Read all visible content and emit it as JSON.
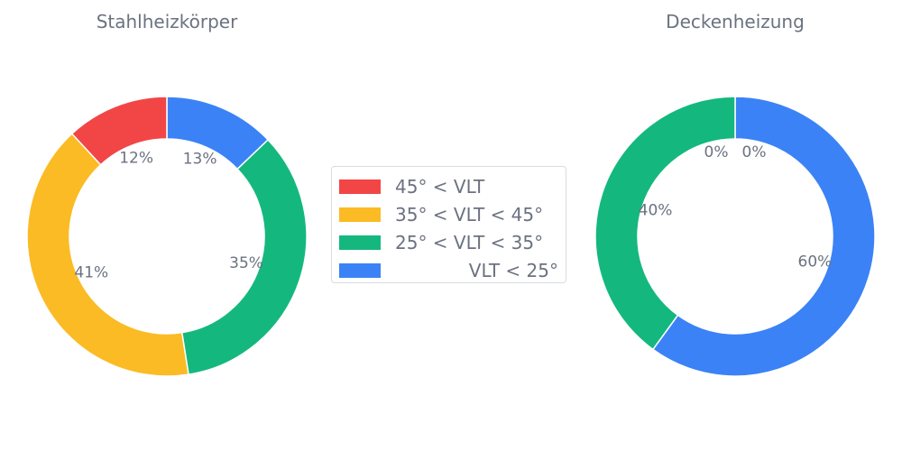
{
  "chart_data": [
    {
      "type": "pie",
      "title": "Stahlheizkörper",
      "categories": [
        "VLT < 25°",
        "25° < VLT < 35°",
        "35° < VLT < 45°",
        "45° < VLT"
      ],
      "values": [
        13,
        35,
        41,
        12
      ],
      "labels": [
        "13%",
        "35%",
        "41%",
        "12%"
      ],
      "donut": true
    },
    {
      "type": "pie",
      "title": "Deckenheizung",
      "categories": [
        "VLT < 25°",
        "25° < VLT < 35°",
        "35° < VLT < 45°",
        "45° < VLT"
      ],
      "values": [
        60,
        40,
        0,
        0
      ],
      "labels": [
        "60%",
        "40%",
        "0%",
        "0%"
      ],
      "donut": true
    }
  ],
  "legend": {
    "placement": "center",
    "items": [
      {
        "label": "45° < VLT",
        "color": "#ef4444"
      },
      {
        "label": "35° < VLT < 45°",
        "color": "#fbbf24"
      },
      {
        "label": "25° < VLT < 35°",
        "color": "#10b981"
      },
      {
        "label": "VLT < 25°",
        "color": "#3b82f6"
      }
    ]
  },
  "colors": [
    "#3b82f6",
    "#14b87f",
    "#fbbb24",
    "#f24646"
  ]
}
